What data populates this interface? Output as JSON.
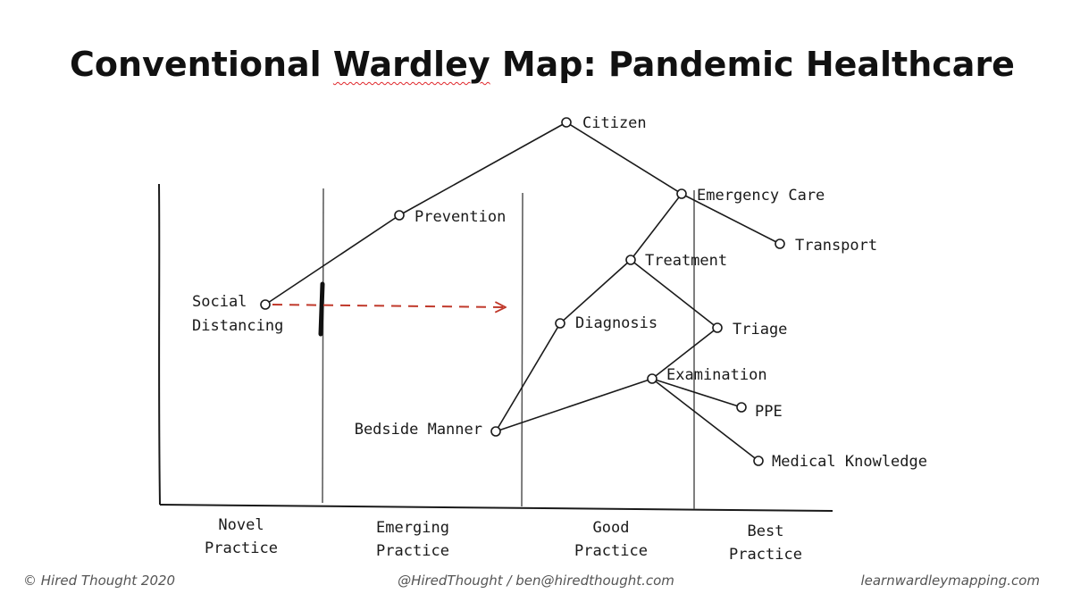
{
  "title": {
    "before": "Conventional ",
    "flagged": "Wardley",
    "after": " Map: Pandemic Healthcare"
  },
  "colors": {
    "ink": "#1a1a1a",
    "arrow": "#c0392b"
  },
  "stages": [
    {
      "id": "novel",
      "lines": [
        "Novel",
        "Practice"
      ]
    },
    {
      "id": "emerging",
      "lines": [
        "Emerging",
        "Practice"
      ]
    },
    {
      "id": "good",
      "lines": [
        "Good",
        "Practice"
      ]
    },
    {
      "id": "best",
      "lines": [
        "Best",
        "Practice"
      ]
    }
  ],
  "components": [
    {
      "id": "citizen",
      "lines": [
        "Citizen"
      ]
    },
    {
      "id": "emergency-care",
      "lines": [
        "Emergency Care"
      ]
    },
    {
      "id": "transport",
      "lines": [
        "Transport"
      ]
    },
    {
      "id": "prevention",
      "lines": [
        "Prevention"
      ]
    },
    {
      "id": "treatment",
      "lines": [
        "Treatment"
      ]
    },
    {
      "id": "social-distancing",
      "lines": [
        "Social",
        "Distancing"
      ]
    },
    {
      "id": "diagnosis",
      "lines": [
        "Diagnosis"
      ]
    },
    {
      "id": "triage",
      "lines": [
        "Triage"
      ]
    },
    {
      "id": "examination",
      "lines": [
        "Examination"
      ]
    },
    {
      "id": "ppe",
      "lines": [
        "PPE"
      ]
    },
    {
      "id": "bedside-manner",
      "lines": [
        "Bedside Manner"
      ]
    },
    {
      "id": "medical-knowledge",
      "lines": [
        "Medical Knowledge"
      ]
    }
  ],
  "links": [
    [
      "citizen",
      "emergency-care"
    ],
    [
      "citizen",
      "prevention"
    ],
    [
      "prevention",
      "social-distancing"
    ],
    [
      "emergency-care",
      "transport"
    ],
    [
      "emergency-care",
      "treatment"
    ],
    [
      "treatment",
      "diagnosis"
    ],
    [
      "treatment",
      "triage"
    ],
    [
      "diagnosis",
      "bedside-manner"
    ],
    [
      "triage",
      "examination"
    ],
    [
      "examination",
      "bedside-manner"
    ],
    [
      "examination",
      "ppe"
    ],
    [
      "examination",
      "medical-knowledge"
    ]
  ],
  "movement": {
    "from": "social-distancing"
  },
  "footer": {
    "left": "© Hired Thought 2020",
    "center": "@HiredThought / ben@hiredthought.com",
    "right": "learnwardleymapping.com"
  }
}
